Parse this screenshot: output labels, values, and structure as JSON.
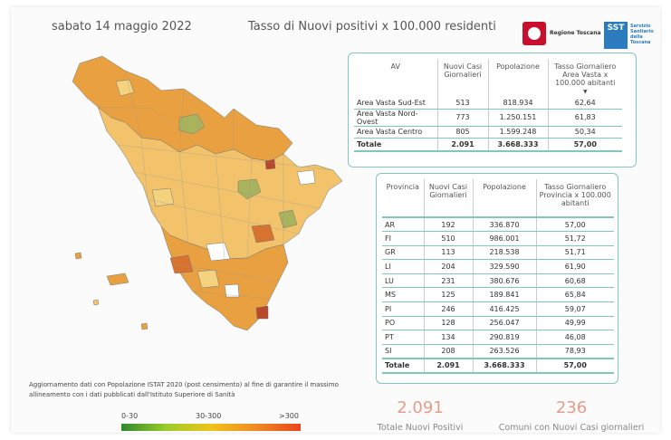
{
  "header": {
    "date": "sabato 14 maggio 2022",
    "title": "Tasso di Nuovi positivi x 100.000 residenti",
    "logo_rt_text": "Regione Toscana",
    "logo_sst_text": "SST",
    "logo_sst_sub": "Servizio Sanitario della Toscana"
  },
  "av_table": {
    "headers": [
      "AV",
      "Nuovi Casi Giornalieri",
      "Popolazione",
      "Tasso Giornaliero Area Vasta x 100.000 abitanti"
    ],
    "sort_indicator": "▼",
    "rows": [
      {
        "name": "Area Vasta Sud-Est",
        "casi": "513",
        "pop": "818.934",
        "tasso": "62,64"
      },
      {
        "name": "Area Vasta Nord-Ovest",
        "casi": "773",
        "pop": "1.250.151",
        "tasso": "61,83"
      },
      {
        "name": "Area Vasta Centro",
        "casi": "805",
        "pop": "1.599.248",
        "tasso": "50,34"
      }
    ],
    "total": {
      "name": "Totale",
      "casi": "2.091",
      "pop": "3.668.333",
      "tasso": "57,00"
    }
  },
  "prov_table": {
    "headers": [
      "Provincia",
      "Nuovi Casi Giornalieri",
      "Popolazione",
      "Tasso Giornaliero Provincia x 100.000 abitanti"
    ],
    "rows": [
      {
        "name": "AR",
        "casi": "192",
        "pop": "336.870",
        "tasso": "57,00"
      },
      {
        "name": "FI",
        "casi": "510",
        "pop": "986.001",
        "tasso": "51,72"
      },
      {
        "name": "GR",
        "casi": "113",
        "pop": "218.538",
        "tasso": "51,71"
      },
      {
        "name": "LI",
        "casi": "204",
        "pop": "329.590",
        "tasso": "61,90"
      },
      {
        "name": "LU",
        "casi": "231",
        "pop": "380.676",
        "tasso": "60,68"
      },
      {
        "name": "MS",
        "casi": "125",
        "pop": "189.841",
        "tasso": "65,84"
      },
      {
        "name": "PI",
        "casi": "246",
        "pop": "416.425",
        "tasso": "59,07"
      },
      {
        "name": "PO",
        "casi": "128",
        "pop": "256.047",
        "tasso": "49,99"
      },
      {
        "name": "PT",
        "casi": "134",
        "pop": "290.819",
        "tasso": "46,08"
      },
      {
        "name": "SI",
        "casi": "208",
        "pop": "263.526",
        "tasso": "78,93"
      }
    ],
    "total": {
      "name": "Totale",
      "casi": "2.091",
      "pop": "3.668.333",
      "tasso": "57,00"
    }
  },
  "note": "Aggiornamento dati con Popolazione ISTAT 2020 (post censimento) al fine di garantire il massimo allineamento con i dati pubblicati dall'Istituto Superiore di Sanità",
  "legend": {
    "labels": [
      "0-30",
      "30-300",
      ">300"
    ],
    "colors": [
      "#2d8a2d",
      "#f0c419",
      "#e8461e"
    ]
  },
  "kpis": [
    {
      "value": "2.091",
      "label": "Totale Nuovi Positivi"
    },
    {
      "value": "236",
      "label": "Comuni con Nuovi Casi giornalieri"
    }
  ],
  "map": {
    "name": "Tuscany comuni choropleth map",
    "colors": {
      "low": "#f3c36b",
      "mid": "#e9a040",
      "high": "#d8722f",
      "very_high": "#b9472a",
      "green": "#a9b35d",
      "none": "#ffffff",
      "border": "#777777"
    }
  }
}
